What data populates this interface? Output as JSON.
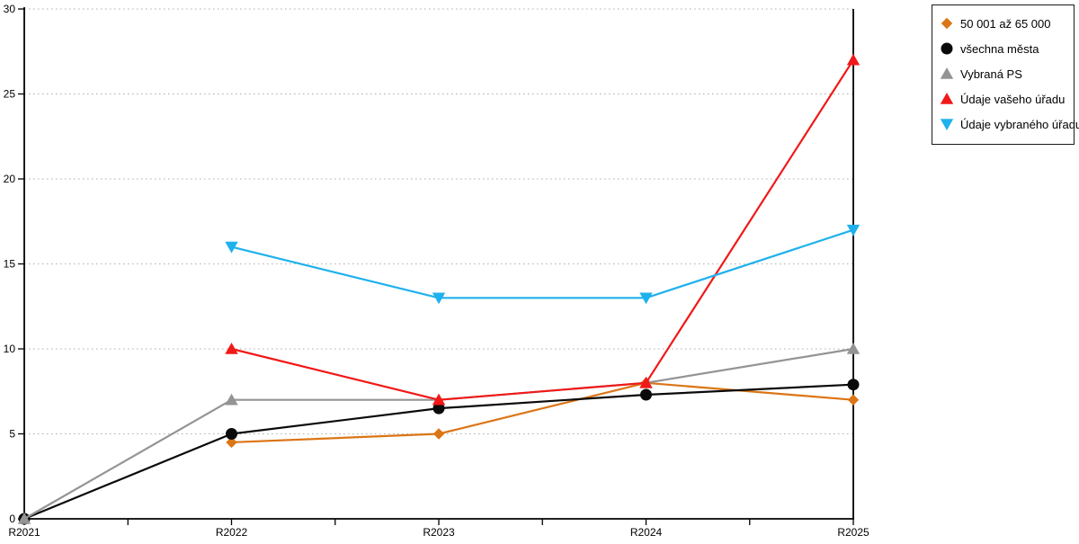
{
  "chart_data": {
    "type": "line",
    "title": "",
    "xlabel": "",
    "ylabel": "",
    "x_categories": [
      "R2021",
      "R2022",
      "R2023",
      "R2024",
      "R2025"
    ],
    "ylim": [
      0,
      30
    ],
    "y_ticks": [
      0,
      5,
      10,
      15,
      20,
      25,
      30
    ],
    "grid": "horizontal dotted",
    "grid_color": "#ADADAD",
    "axis_color": "#000000",
    "legend_position": "top-right outside",
    "series": [
      {
        "name": "50 001 až 65 000",
        "marker": "diamond",
        "color": "#DB7515",
        "values": [
          null,
          4.5,
          5,
          8,
          7
        ]
      },
      {
        "name": "všechna města",
        "marker": "circle",
        "color": "#0A0A0A",
        "values": [
          0,
          5,
          6.5,
          7.3,
          7.9
        ]
      },
      {
        "name": "Vybraná PS",
        "marker": "triangle-up",
        "color": "#949494",
        "values": [
          0,
          7,
          7,
          8,
          10
        ]
      },
      {
        "name": "Údaje vašeho úřadu",
        "marker": "triangle-up",
        "color": "#F21818",
        "values": [
          null,
          10,
          7,
          8,
          27
        ]
      },
      {
        "name": "Údaje vybraného úřadu",
        "marker": "triangle-down",
        "color": "#1FB1EC",
        "values": [
          null,
          16,
          13,
          13,
          17
        ]
      }
    ]
  }
}
